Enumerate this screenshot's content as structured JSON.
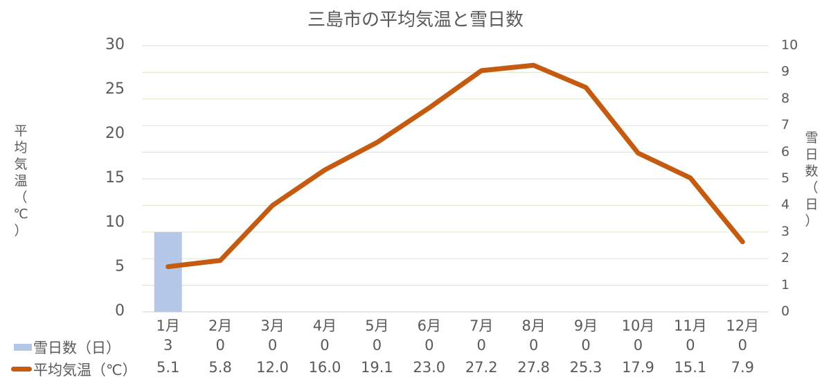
{
  "chart_data": {
    "type": "bar+line",
    "title": "三島市の平均気温と雪日数",
    "categories": [
      "1月",
      "2月",
      "3月",
      "4月",
      "5月",
      "6月",
      "7月",
      "8月",
      "9月",
      "10月",
      "11月",
      "12月"
    ],
    "series": [
      {
        "name": "雪日数（日）",
        "type": "bar",
        "axis": "right",
        "color": "#b4c7e7",
        "values": [
          3,
          0,
          0,
          0,
          0,
          0,
          0,
          0,
          0,
          0,
          0,
          0
        ]
      },
      {
        "name": "平均気温（℃）",
        "type": "line",
        "axis": "left",
        "color": "#c55a11",
        "values": [
          5.1,
          5.8,
          12.0,
          16.0,
          19.1,
          23.0,
          27.2,
          27.8,
          25.3,
          17.9,
          15.1,
          7.9
        ]
      }
    ],
    "ylabel_left": "平均気温（℃）",
    "ylabel_right": "雪日数（日）",
    "ylim_left": [
      0,
      30
    ],
    "ylim_right": [
      0,
      10
    ],
    "yticks_left": [
      "30",
      "25",
      "20",
      "15",
      "10",
      "5",
      "0"
    ],
    "yticks_right": [
      "10",
      "9",
      "8",
      "7",
      "6",
      "5",
      "4",
      "3",
      "2",
      "1",
      "0"
    ],
    "grid": true,
    "legend_position": "data-table-below"
  },
  "table": {
    "row1": {
      "label": "雪日数（日）",
      "values": [
        "3",
        "0",
        "0",
        "0",
        "0",
        "0",
        "0",
        "0",
        "0",
        "0",
        "0",
        "0"
      ]
    },
    "row2": {
      "label": "平均気温（℃）",
      "values": [
        "5.1",
        "5.8",
        "12.0",
        "16.0",
        "19.1",
        "23.0",
        "27.2",
        "27.8",
        "25.3",
        "17.9",
        "15.1",
        "7.9"
      ]
    }
  },
  "axis_label_left_chars": [
    "平",
    "均",
    "気",
    "温",
    "（",
    "℃",
    "）"
  ],
  "axis_label_right_chars": [
    "雪",
    "日",
    "数",
    "（",
    "日",
    "）"
  ]
}
